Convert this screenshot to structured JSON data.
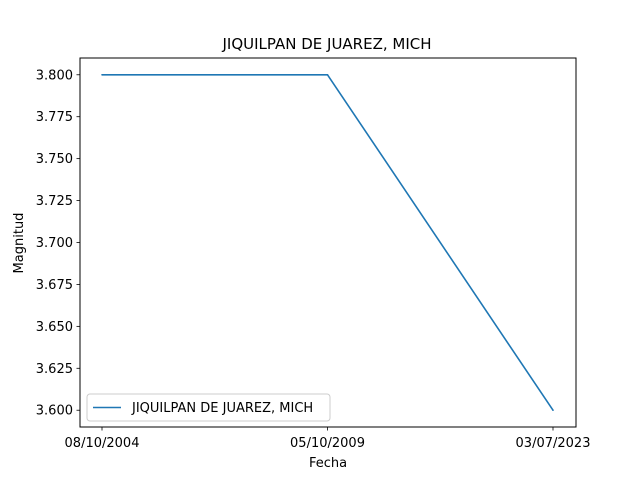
{
  "chart_data": {
    "type": "line",
    "title": "JIQUILPAN DE JUAREZ, MICH",
    "xlabel": "Fecha",
    "ylabel": "Magnitud",
    "categories": [
      "08/10/2004",
      "05/10/2009",
      "03/07/2023"
    ],
    "series": [
      {
        "name": "JIQUILPAN DE JUAREZ, MICH",
        "values": [
          3.8,
          3.8,
          3.6
        ],
        "color": "#1f77b4"
      }
    ],
    "ylim": [
      3.59,
      3.81
    ],
    "yticks": [
      3.6,
      3.625,
      3.65,
      3.675,
      3.7,
      3.725,
      3.75,
      3.775,
      3.8
    ],
    "ytick_labels": [
      "3.600",
      "3.625",
      "3.650",
      "3.675",
      "3.700",
      "3.725",
      "3.750",
      "3.775",
      "3.800"
    ],
    "grid": false,
    "legend_position": "lower-left"
  }
}
